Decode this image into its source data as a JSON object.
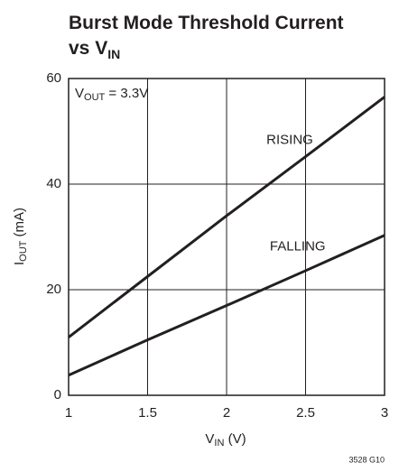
{
  "chart_data": {
    "type": "line",
    "title": [
      {
        "text": "Burst Mode Threshold Current"
      },
      {
        "text": "vs V",
        "sub": "IN"
      }
    ],
    "x_label": {
      "text": "V",
      "sub": "IN",
      "suffix": " (V)"
    },
    "y_label": {
      "text": "I",
      "sub": "OUT",
      "suffix": " (mA)"
    },
    "annotation": {
      "text": "V",
      "sub": "OUT",
      "suffix": " = 3.3V"
    },
    "footnote": "3528 G10",
    "x": [
      1,
      1.5,
      2,
      2.5,
      3
    ],
    "series": [
      {
        "name": "RISING",
        "color": "#231f20",
        "values": [
          11,
          22.5,
          34,
          45.2,
          56.5
        ]
      },
      {
        "name": "FALLING",
        "color": "#231f20",
        "values": [
          3.8,
          10.5,
          17,
          23.6,
          30.3
        ]
      }
    ],
    "xlim": [
      1,
      3
    ],
    "xticks": [
      1,
      1.5,
      2,
      2.5,
      3
    ],
    "ylim": [
      0,
      60
    ],
    "yticks": [
      0,
      20,
      40,
      60
    ],
    "grid": true
  }
}
